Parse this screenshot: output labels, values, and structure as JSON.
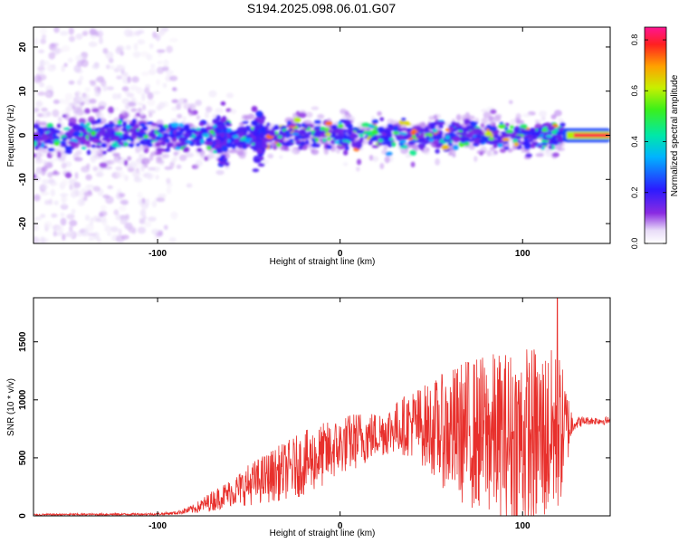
{
  "page": {
    "title": "S194.2025.098.06.01.G07"
  },
  "chart_data": [
    {
      "type": "heatmap",
      "title": "S194.2025.098.06.01.G07",
      "xlabel": "Height of straight line (km)",
      "ylabel": "Frequency (Hz)",
      "xlim": [
        -168,
        148
      ],
      "ylim": [
        -24.5,
        24.5
      ],
      "x_ticks": [
        -100,
        0,
        100
      ],
      "y_ticks": [
        -20,
        -10,
        0,
        10,
        20
      ],
      "colorbar": {
        "label": "Normalized spectral amplitude",
        "range": [
          0,
          0.85
        ],
        "ticks": [
          0.0,
          0.2,
          0.4,
          0.6,
          0.8
        ],
        "tick_labels": [
          "0.0",
          "0.2",
          "0.4",
          "0.6",
          "0.8"
        ]
      },
      "features": {
        "dense_band_center_hz": 0,
        "dense_band_halfwidth_hz": 3,
        "strong_tone_x_range": [
          122,
          148
        ],
        "strong_tone_amplitude": 0.85,
        "scatter_region_x_range": [
          -168,
          -90
        ],
        "scatter_region_y_range": [
          -24,
          24
        ]
      }
    },
    {
      "type": "line",
      "xlabel": "Height of straight line (km)",
      "ylabel": "SNR (10 * v/v)",
      "xlim": [
        -168,
        148
      ],
      "ylim": [
        0,
        1880
      ],
      "x_ticks": [
        -100,
        0,
        100
      ],
      "y_ticks": [
        0,
        500,
        1000,
        1500
      ],
      "color": "#e8302c",
      "envelope": {
        "x": [
          -168,
          -100,
          -90,
          -80,
          -70,
          -60,
          -50,
          -40,
          -30,
          -20,
          -10,
          0,
          10,
          20,
          30,
          40,
          50,
          60,
          70,
          80,
          90,
          100,
          110,
          120,
          128,
          135,
          148
        ],
        "mean": [
          10,
          15,
          25,
          60,
          130,
          200,
          270,
          330,
          390,
          450,
          520,
          600,
          660,
          700,
          760,
          800,
          760,
          720,
          720,
          700,
          680,
          680,
          680,
          720,
          800,
          820,
          820
        ],
        "amp": [
          8,
          10,
          15,
          40,
          90,
          120,
          180,
          220,
          250,
          280,
          280,
          250,
          250,
          200,
          220,
          300,
          400,
          550,
          650,
          700,
          750,
          800,
          800,
          700,
          60,
          35,
          35
        ]
      },
      "peak": {
        "x": 119,
        "y": 1880
      }
    }
  ]
}
